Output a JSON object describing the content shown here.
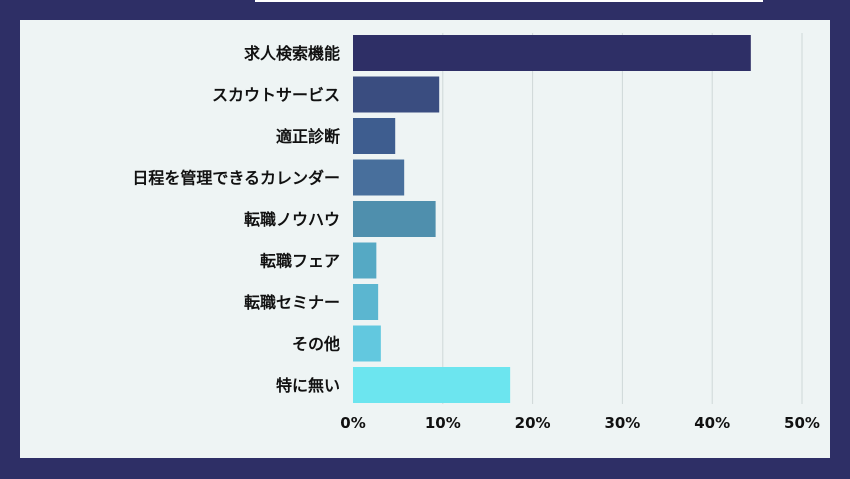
{
  "chart_data": {
    "type": "bar",
    "orientation": "horizontal",
    "categories": [
      "求人検索機能",
      "スカウトサービス",
      "適正診断",
      "日程を管理できるカレンダー",
      "転職ノウハウ",
      "転職フェア",
      "転職セミナー",
      "その他",
      "特に無い"
    ],
    "values": [
      44.3,
      9.6,
      4.7,
      5.7,
      9.2,
      2.6,
      2.8,
      3.1,
      17.5
    ],
    "xlim": [
      0,
      50
    ],
    "ticks": [
      0,
      10,
      20,
      30,
      40,
      50
    ],
    "tick_labels": [
      "0%",
      "10%",
      "20%",
      "30%",
      "40%",
      "50%"
    ],
    "grid": "vertical",
    "colors": [
      "#2e2f66",
      "#3a4d80",
      "#3e5d8f",
      "#486f9c",
      "#4f8fad",
      "#55a9c4",
      "#5bb6d0",
      "#62c8df",
      "#6ce5ef"
    ],
    "title": "",
    "xlabel": "",
    "ylabel": ""
  }
}
